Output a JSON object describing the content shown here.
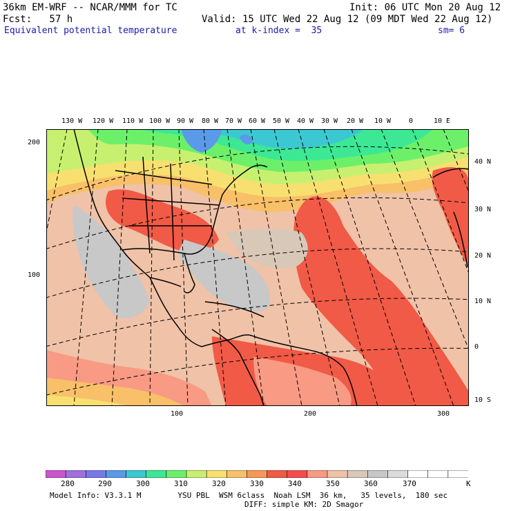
{
  "header": {
    "model": "36km EM-WRF -- NCAR/MMM for TC",
    "init": "Init: 06 UTC Mon 20 Aug 12",
    "fcst": "Fcst:   57 h",
    "valid": "Valid: 15 UTC Wed 22 Aug 12 (09 MDT Wed 22 Aug 12)",
    "field": "Equivalent potential temperature",
    "level": "at k-index =  35",
    "smooth": "sm= 6"
  },
  "map": {
    "top_lon_labels": [
      "130 W",
      "120 W",
      "110 W",
      "100 W",
      "90 W",
      "80 W",
      "70 W",
      "60 W",
      "50 W",
      "40 W",
      "30 W",
      "20 W",
      "10 W",
      "0",
      "10 E"
    ],
    "right_lat_labels": [
      "40 N",
      "30 N",
      "20 N",
      "10 N",
      "0",
      "10 S"
    ],
    "left_grid_labels": [
      "200",
      "100"
    ],
    "bottom_grid_labels": [
      "100",
      "200",
      "300"
    ]
  },
  "colorbar": {
    "colors": [
      "#cc55cc",
      "#a070dd",
      "#7878e8",
      "#5a9ae8",
      "#3cc8d2",
      "#3ce894",
      "#6cf06a",
      "#c8f070",
      "#f8e070",
      "#f8c068",
      "#f89858",
      "#f05a46",
      "#f44c4c",
      "#f89a84",
      "#f0c2a8",
      "#d8c8b8",
      "#c8c8c8",
      "#dcdcdc",
      "#ffffff",
      "#ffffff",
      "#ffffff"
    ],
    "labels": [
      "280",
      "290",
      "300",
      "310",
      "320",
      "330",
      "340",
      "350",
      "360",
      "370",
      "K"
    ]
  },
  "footer": {
    "line1": "Model Info: V3.3.1 M        YSU PBL  WSM 6class  Noah LSM  36 km,   35 levels,  180 sec",
    "line2": "DIFF: simple KM: 2D Smagor"
  }
}
